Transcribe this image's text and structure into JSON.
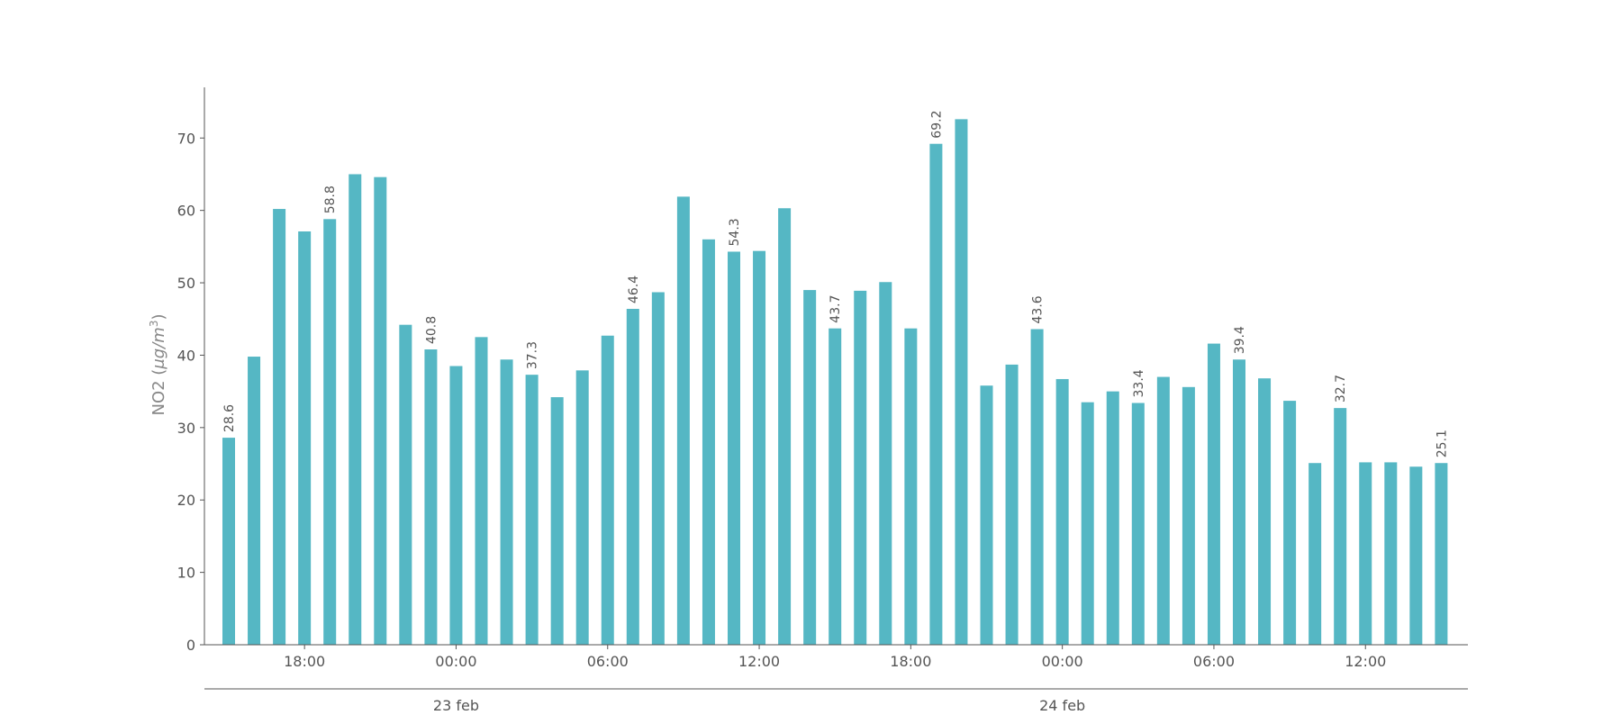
{
  "chart_data": {
    "type": "bar",
    "ylabel_main": "NO2 (",
    "ylabel_unit": "μg/m",
    "ylabel_sup": "3",
    "ylabel_close": ")",
    "color": "#55b7c4",
    "ylim": [
      0,
      77
    ],
    "yticks": [
      0,
      10,
      20,
      30,
      40,
      50,
      60,
      70
    ],
    "x_ticks": [
      {
        "index": 3,
        "label": "18:00"
      },
      {
        "index": 9,
        "label": "00:00"
      },
      {
        "index": 15,
        "label": "06:00"
      },
      {
        "index": 21,
        "label": "12:00"
      },
      {
        "index": 27,
        "label": "18:00"
      },
      {
        "index": 33,
        "label": "00:00"
      },
      {
        "index": 39,
        "label": "06:00"
      },
      {
        "index": 45,
        "label": "12:00"
      }
    ],
    "day_labels": [
      {
        "index": 9,
        "label": "23 feb"
      },
      {
        "index": 33,
        "label": "24 feb"
      }
    ],
    "values": [
      28.6,
      39.8,
      60.2,
      57.1,
      58.8,
      65.0,
      64.6,
      44.2,
      40.8,
      38.5,
      42.5,
      39.4,
      37.3,
      34.2,
      37.9,
      42.7,
      46.4,
      48.7,
      61.9,
      56.0,
      54.3,
      54.4,
      60.3,
      49.0,
      43.7,
      48.9,
      50.1,
      43.7,
      69.2,
      72.6,
      35.8,
      38.7,
      43.6,
      36.7,
      33.5,
      35.0,
      33.4,
      37.0,
      35.6,
      41.6,
      39.4,
      36.8,
      33.7,
      25.1,
      32.7,
      25.2,
      25.2,
      24.6,
      25.1
    ],
    "labeled_indices": [
      0,
      4,
      8,
      12,
      16,
      20,
      24,
      28,
      32,
      36,
      40,
      44,
      48
    ]
  }
}
